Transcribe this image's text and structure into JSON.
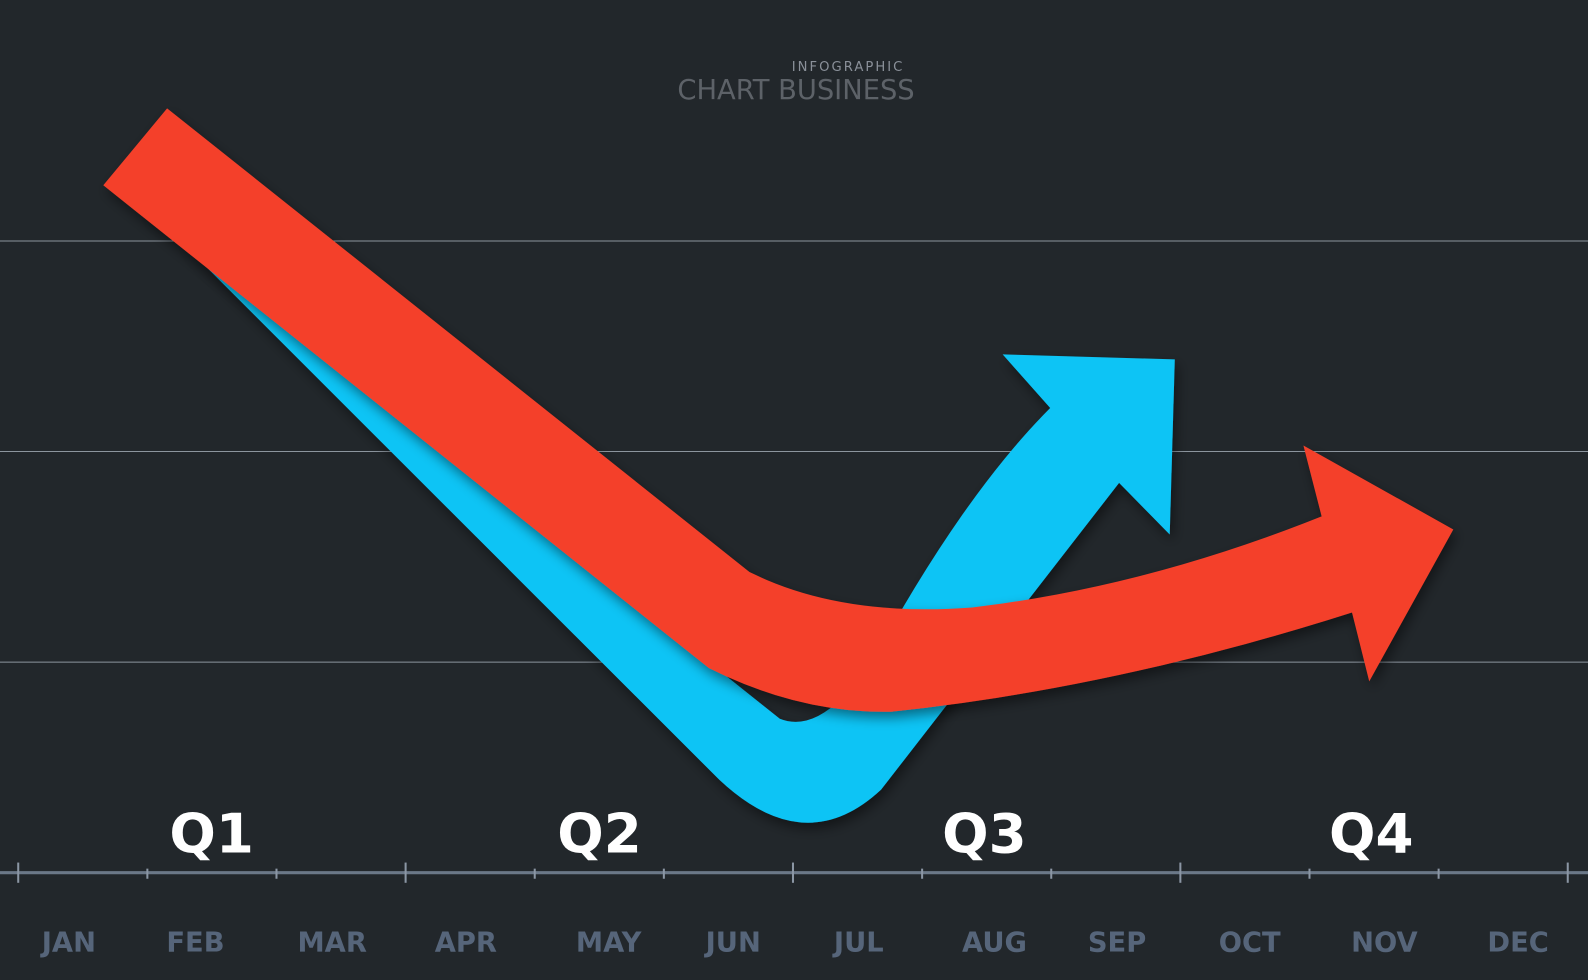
{
  "header": {
    "kicker": "INFOGRAPHIC",
    "title": "CHART BUSINESS"
  },
  "quarters": [
    "Q1",
    "Q2",
    "Q3",
    "Q4"
  ],
  "months": [
    "JAN",
    "FEB",
    "MAR",
    "APR",
    "MAY",
    "JUN",
    "JUL",
    "AUG",
    "SEP",
    "OCT",
    "NOV",
    "DEC"
  ]
}
